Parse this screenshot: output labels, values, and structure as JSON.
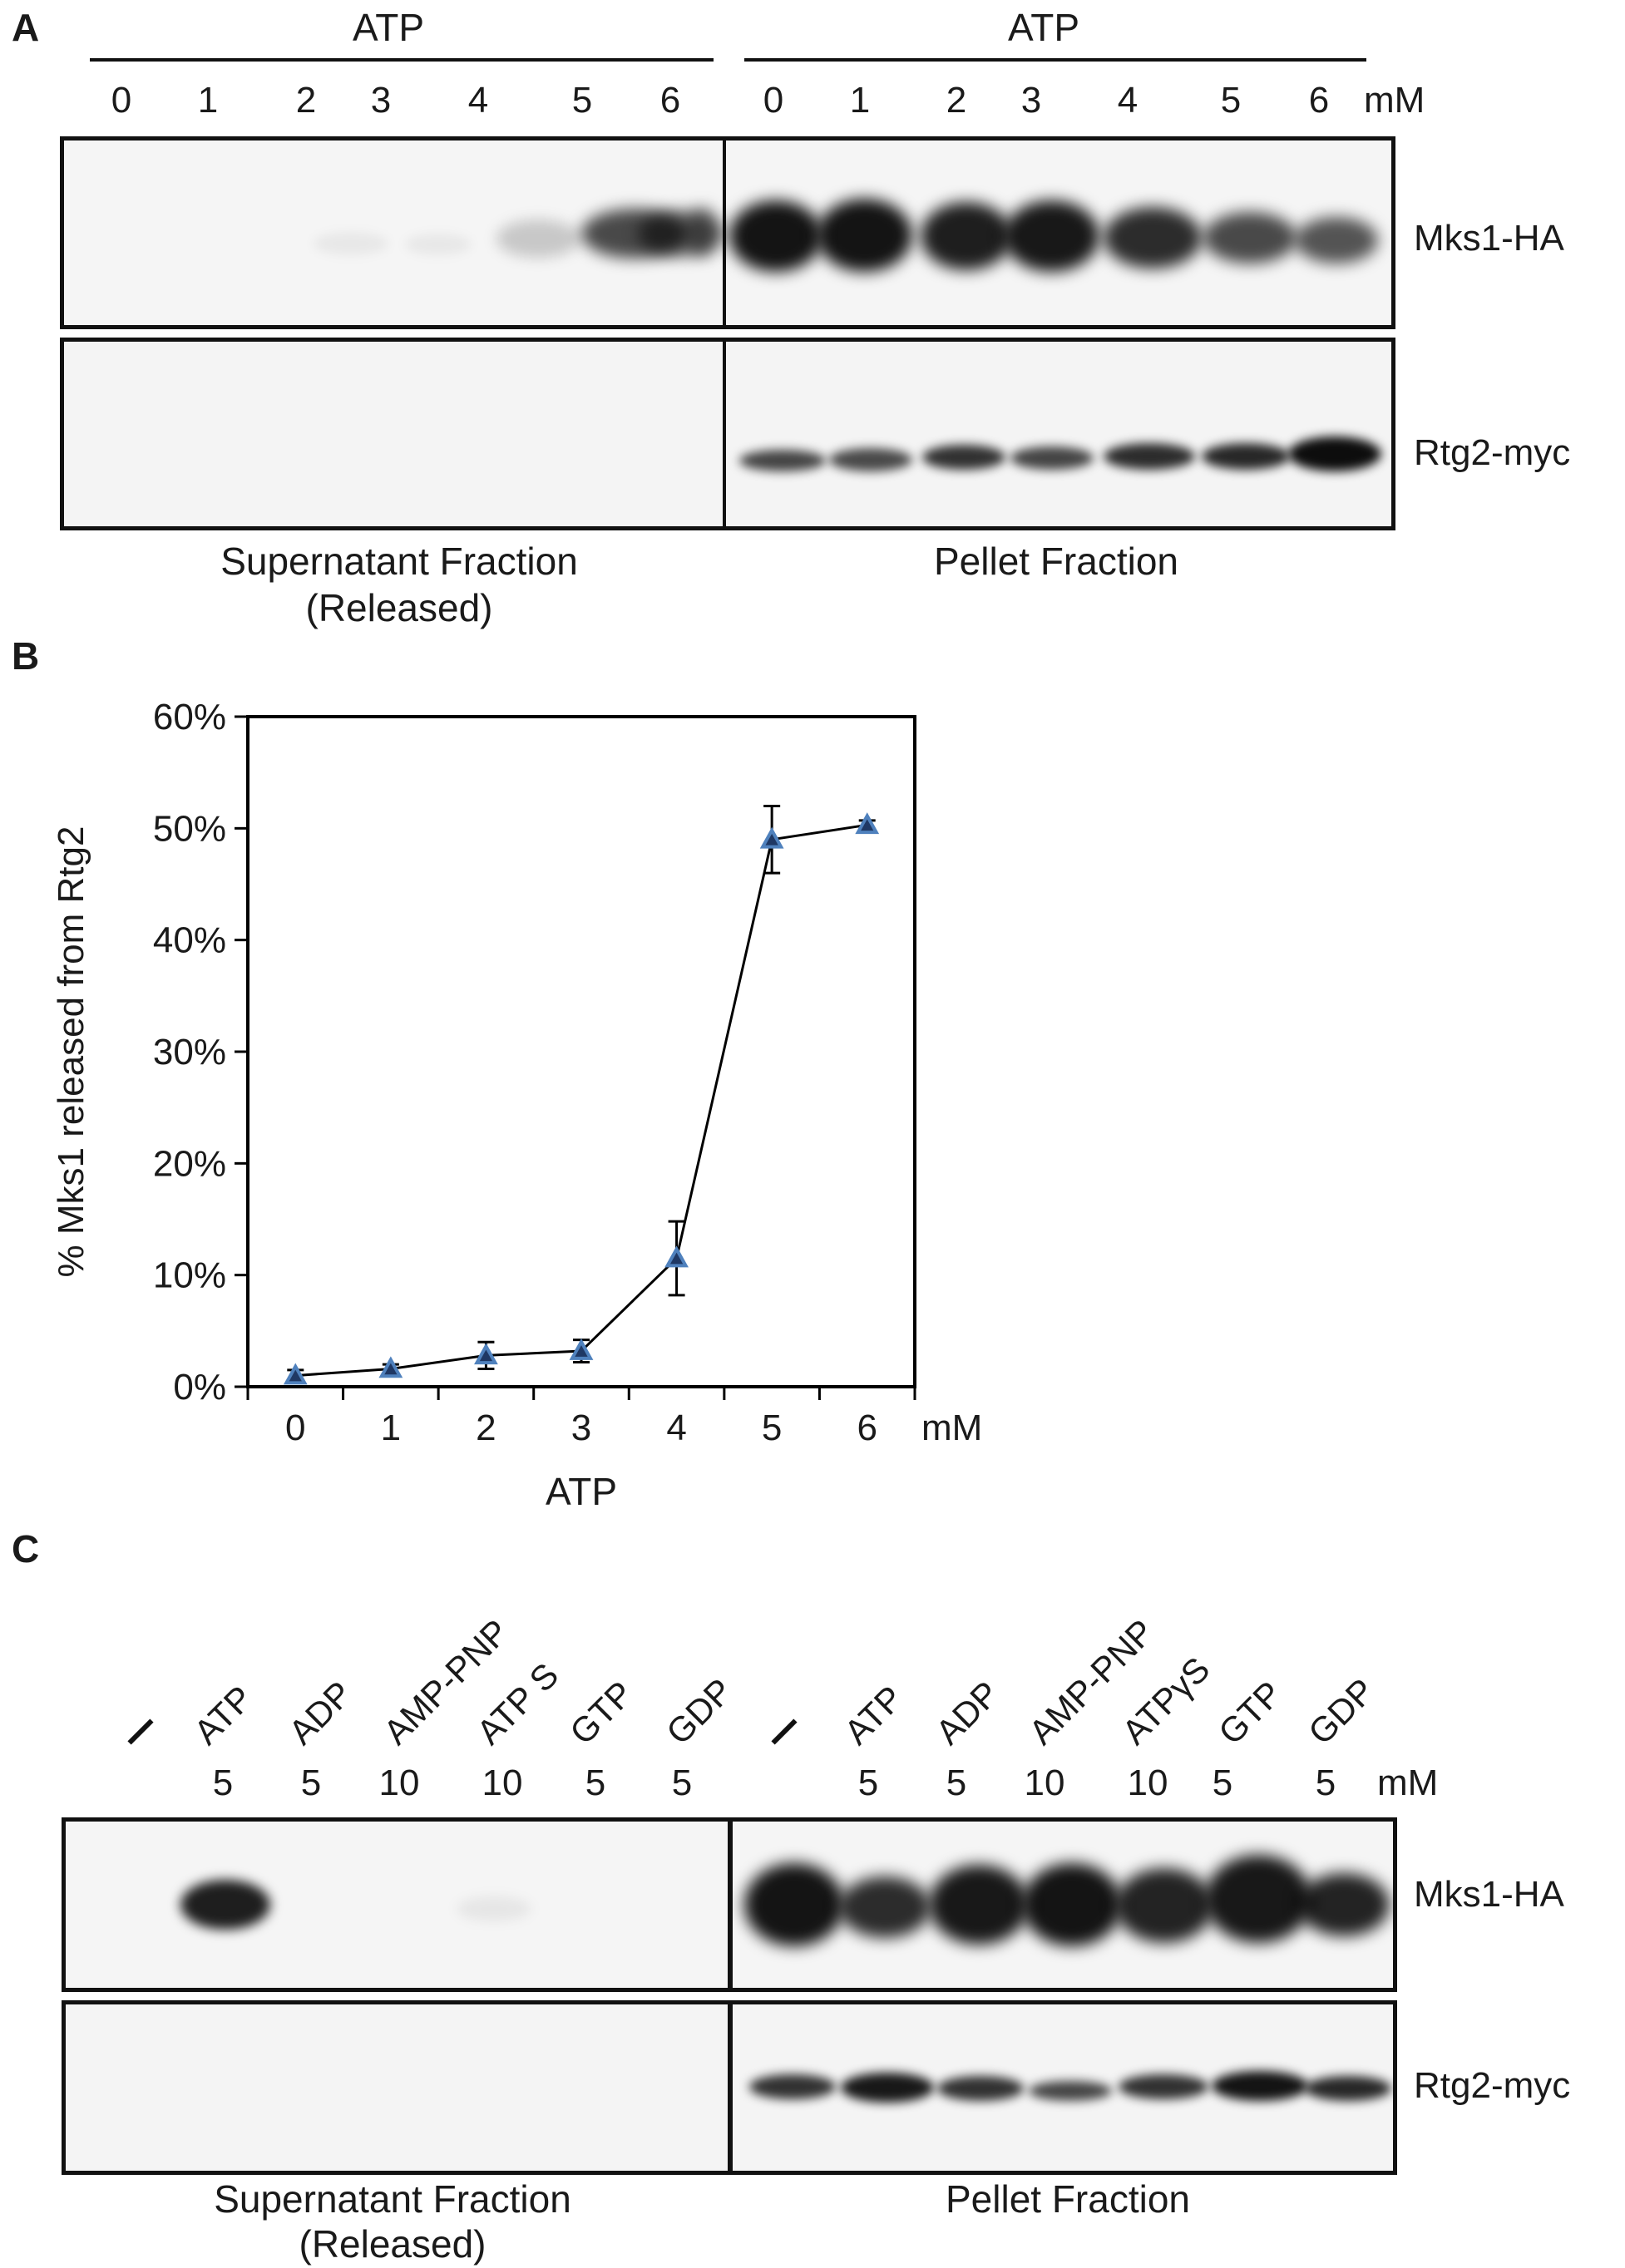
{
  "panel_a": {
    "letter": "A",
    "group_left_label": "ATP",
    "group_right_label": "ATP",
    "lanes_left": [
      "0",
      "1",
      "2",
      "3",
      "4",
      "5",
      "6"
    ],
    "lanes_right": [
      "0",
      "1",
      "2",
      "3",
      "4",
      "5",
      "6"
    ],
    "unit": "mM",
    "row1_label": "Mks1-HA",
    "row2_label": "Rtg2-myc",
    "left_fraction_line1": "Supernatant Fraction",
    "left_fraction_line2": "(Released)",
    "right_fraction": "Pellet Fraction"
  },
  "panel_b": {
    "letter": "B",
    "unit": "mM"
  },
  "chart_data": {
    "type": "line",
    "title": "",
    "xlabel": "ATP",
    "ylabel": "% Mks1 released from Rtg2",
    "x": [
      0,
      1,
      2,
      3,
      4,
      5,
      6
    ],
    "xticks": [
      "0",
      "1",
      "2",
      "3",
      "4",
      "5",
      "6"
    ],
    "ylim": [
      0,
      60
    ],
    "yticks": [
      "0%",
      "10%",
      "20%",
      "30%",
      "40%",
      "50%",
      "60%"
    ],
    "series": [
      {
        "values": [
          1.0,
          1.6,
          2.8,
          3.2,
          11.5,
          49.0,
          50.3
        ],
        "errors": [
          0.5,
          0.4,
          1.2,
          1.0,
          3.3,
          3.0,
          0.4
        ]
      }
    ],
    "marker": "triangle",
    "marker_color": "#4f81bd",
    "line_color": "#000000",
    "grid": false,
    "legend": "none"
  },
  "panel_c": {
    "letter": "C",
    "left_treatments": [
      "–",
      "ATP",
      "ADP",
      "AMP-PNP",
      "ATP S",
      "GTP",
      "GDP"
    ],
    "right_treatments": [
      "–",
      "ATP",
      "ADP",
      "AMP-PNP",
      "ATPγS",
      "GTP",
      "GDP"
    ],
    "left_concs": [
      "",
      "5",
      "5",
      "10",
      "10",
      "5",
      "5"
    ],
    "right_concs": [
      "",
      "5",
      "5",
      "10",
      "10",
      "5",
      "5"
    ],
    "unit": "mM",
    "row1_label": "Mks1-HA",
    "row2_label": "Rtg2-myc",
    "left_fraction_line1": "Supernatant Fraction",
    "left_fraction_line2": "(Released)",
    "right_fraction": "Pellet Fraction"
  }
}
